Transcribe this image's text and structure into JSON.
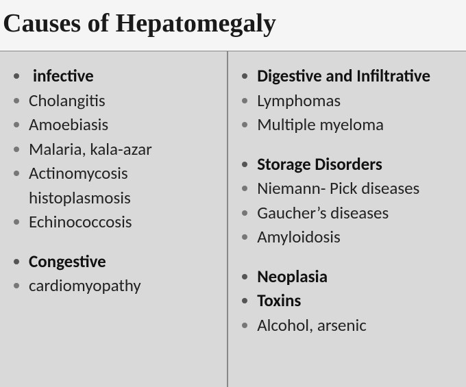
{
  "title": "Causes of Hepatomegaly",
  "left": {
    "group1_header": "infective",
    "group1_items": [
      "Cholangitis",
      "Amoebiasis",
      "Malaria, kala-azar",
      "Actinomycosis histoplasmosis",
      "Echinococcosis"
    ],
    "group2_header": "Congestive",
    "group2_items": [
      "cardiomyopathy"
    ]
  },
  "right": {
    "group1_header": "Digestive and Infiltrative",
    "group1_items": [
      "Lymphomas",
      "Multiple myeloma"
    ],
    "group2_header": "Storage Disorders",
    "group2_items": [
      "Niemann- Pick diseases",
      "Gaucher’s diseases",
      "Amyloidosis"
    ],
    "group3_header": "Neoplasia",
    "group4_header": "Toxins",
    "group4_items": [
      "Alcohol, arsenic"
    ]
  },
  "colors": {
    "background": "#d9d9d9",
    "title_bg": "#f5f5f5",
    "bullet": "#777",
    "text": "#222",
    "divider": "#888"
  },
  "typography": {
    "title_font": "Georgia serif",
    "title_size_pt": 29,
    "body_font": "Gill Sans",
    "body_size_pt": 19
  }
}
